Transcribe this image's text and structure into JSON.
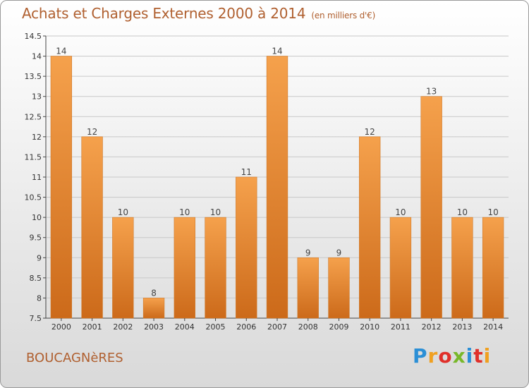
{
  "header": {
    "title": "Achats et Charges Externes 2000 à 2014",
    "unit": "(en milliers d'€)"
  },
  "footer": {
    "town": "BOUCAGNèRES",
    "logo_letters": [
      "P",
      "r",
      "o",
      "x",
      "i",
      "t",
      "i"
    ],
    "logo_colors": [
      "#2b8fd6",
      "#f0a020",
      "#e0302a",
      "#78b82a",
      "#2b8fd6",
      "#e0302a",
      "#f0a020"
    ]
  },
  "chart_data": {
    "type": "bar",
    "categories": [
      "2000",
      "2001",
      "2002",
      "2003",
      "2004",
      "2005",
      "2006",
      "2007",
      "2008",
      "2009",
      "2010",
      "2011",
      "2012",
      "2013",
      "2014"
    ],
    "values": [
      14,
      12,
      10,
      8,
      10,
      10,
      11,
      14,
      9,
      9,
      12,
      10,
      13,
      10,
      10
    ],
    "labels": [
      "14",
      "12",
      "10",
      "8",
      "10",
      "10",
      "11",
      "14",
      "9",
      "9",
      "12",
      "10",
      "13",
      "10",
      "10"
    ],
    "ylim": [
      7.5,
      14.5
    ],
    "yticks": [
      7.5,
      8,
      8.5,
      9,
      9.5,
      10,
      10.5,
      11,
      11.5,
      12,
      12.5,
      13,
      13.5,
      14,
      14.5
    ],
    "ytick_labels": [
      "7.5",
      "8",
      "8.5",
      "9",
      "9.5",
      "10",
      "10.5",
      "11",
      "11.5",
      "12",
      "12.5",
      "13",
      "13.5",
      "14",
      "14.5"
    ],
    "grid": true,
    "bar_color_top": "#f5a14c",
    "bar_color_bottom": "#cc6a1a"
  }
}
